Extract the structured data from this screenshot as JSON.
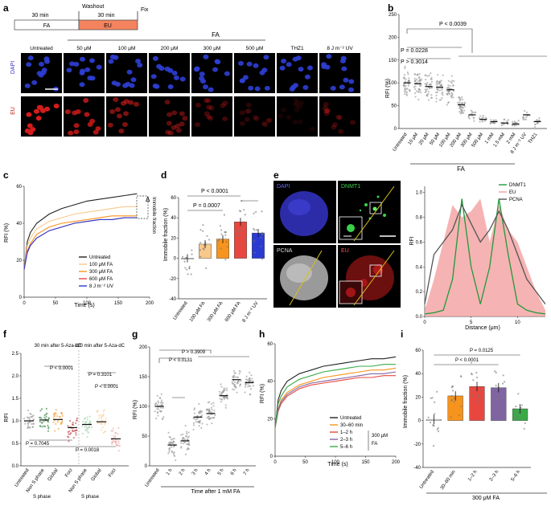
{
  "panel_labels": [
    "a",
    "b",
    "c",
    "d",
    "e",
    "f",
    "g",
    "h",
    "i"
  ],
  "colors": {
    "black": "#222222",
    "orange": "#f7941d",
    "orange_light": "#f9c98b",
    "red": "#e8473f",
    "red_dark": "#c0262c",
    "purple": "#8064a2",
    "green": "#3aaa47",
    "green_dark": "#1f9a3a",
    "blue": "#2b3bd1",
    "gray": "#8a8a8a",
    "pink": "#f4a0a0",
    "dapi": "#3535c8",
    "eu": "#c11a1a"
  },
  "a": {
    "fa_label": "FA",
    "eu_label": "EU",
    "time_fa": "30 min",
    "time_eu": "30 min",
    "washout": "Washout",
    "fix": "Fix",
    "fa_header": "FA",
    "columns": [
      "Untreated",
      "50 μM",
      "100 μM",
      "200 μM",
      "300 μM",
      "500 μM",
      "THZ1",
      "8 J m⁻² UV"
    ],
    "row_dapi": "DAPI",
    "row_eu": "EU"
  },
  "b": {
    "ylabel": "RFI (%)",
    "xgroup": "FA",
    "p1": "P > 0.3014",
    "p2": "P = 0.0228",
    "p3": "P < 0.0039",
    "chart_data": {
      "type": "scatter",
      "categories": [
        "Untreated",
        "10 μM",
        "20 μM",
        "50 μM",
        "100 μM",
        "200 μM",
        "300 μM",
        "500 μM",
        "1 mM",
        "1.5 mM",
        "2 mM",
        "8 J m⁻² UV",
        "THZ1"
      ],
      "values": [
        100,
        98,
        92,
        90,
        85,
        52,
        30,
        20,
        15,
        12,
        10,
        30,
        15
      ],
      "ylabel": "RFI (%)",
      "ylim": [
        0,
        250
      ],
      "yticks": [
        0,
        50,
        100,
        150,
        200,
        250
      ]
    }
  },
  "c": {
    "ylabel": "RFI (%)",
    "xlabel": "Time (s)",
    "delta": "Δ",
    "imm_label": "Immobile fraction",
    "legend": [
      "Untreated",
      "100 μM FA",
      "300 μM FA",
      "600 μM FA",
      "8 J m⁻² UV"
    ],
    "chart_data": {
      "type": "line",
      "x": [
        0,
        5,
        10,
        20,
        40,
        60,
        80,
        100,
        120,
        140,
        160,
        180
      ],
      "series": [
        {
          "name": "Untreated",
          "values": [
            15,
            30,
            35,
            40,
            45,
            48,
            50,
            52,
            53,
            54,
            55,
            56
          ]
        },
        {
          "name": "100 μM FA",
          "values": [
            15,
            28,
            32,
            37,
            41,
            43,
            45,
            46,
            47,
            48,
            49,
            49
          ]
        },
        {
          "name": "300 μM FA",
          "values": [
            15,
            25,
            29,
            34,
            38,
            40,
            41,
            42,
            43,
            44,
            44,
            44
          ]
        },
        {
          "name": "600 μM FA",
          "values": [
            15,
            25,
            28,
            32,
            36,
            38,
            40,
            41,
            42,
            42,
            43,
            43
          ]
        },
        {
          "name": "8 J m⁻² UV",
          "values": [
            15,
            24,
            28,
            32,
            36,
            38,
            40,
            41,
            42,
            42,
            43,
            43
          ]
        }
      ],
      "xlabel": "Time (s)",
      "ylabel": "RFI (%)",
      "xlim": [
        0,
        200
      ],
      "ylim": [
        0,
        60
      ],
      "xticks": [
        0,
        50,
        100,
        150,
        200
      ],
      "yticks": [
        0,
        20,
        40,
        60
      ]
    }
  },
  "d": {
    "ylabel": "Immobile fraction (%)",
    "p1": "P < 0.0001",
    "p2": "P = 0.0007",
    "chart_data": {
      "type": "bar",
      "categories": [
        "Untreated",
        "100 μM FA",
        "300 μM FA",
        "600 μM FA",
        "8 J m⁻² UV"
      ],
      "values": [
        0,
        14,
        19,
        36,
        25
      ],
      "ylim": [
        -40,
        60
      ],
      "yticks": [
        -40,
        -20,
        0,
        20,
        40,
        60
      ]
    }
  },
  "e": {
    "labels": [
      "DAPI",
      "DNMT1",
      "PCNA",
      "EU"
    ],
    "legend": [
      "DNMT1",
      "EU",
      "PCNA"
    ],
    "ylabel": "RFI",
    "xlabel": "Distance (μm)",
    "chart_data": {
      "type": "line",
      "x": [
        0,
        1,
        2,
        3,
        4,
        5,
        6,
        7,
        8,
        9,
        10,
        11,
        12,
        13
      ],
      "series": [
        {
          "name": "DNMT1",
          "values": [
            0.02,
            0.03,
            0.05,
            0.3,
            0.95,
            0.4,
            0.1,
            0.4,
            0.95,
            0.5,
            0.1,
            0.05,
            0.03,
            0.02
          ]
        },
        {
          "name": "EU",
          "values": [
            0.05,
            0.3,
            0.6,
            0.9,
            0.8,
            0.85,
            0.95,
            0.6,
            0.9,
            0.7,
            0.6,
            0.4,
            0.2,
            0.05
          ]
        },
        {
          "name": "PCNA",
          "values": [
            0.1,
            0.5,
            0.6,
            0.7,
            0.9,
            0.75,
            0.6,
            0.7,
            0.85,
            0.7,
            0.5,
            0.3,
            0.2,
            0.1
          ]
        }
      ],
      "xlim": [
        0,
        13
      ],
      "ylim": [
        0,
        1.05
      ],
      "xticks": [
        0,
        5,
        10
      ],
      "yticks": [
        0,
        0.2,
        0.4,
        0.6,
        0.8,
        1.0
      ]
    }
  },
  "f": {
    "ylabel": "RFI",
    "hdr1": "30 min after 5-Aza-dC",
    "hdr2": "120 min after 5-Aza-dC",
    "p1": "P < 0.0001",
    "p2": "P = 0.7045",
    "p3": "P = 0.3101",
    "p4": "P < 0.0001",
    "p5": "P = 0.0018",
    "group_label": "S phase",
    "chart_data": {
      "type": "scatter",
      "categories": [
        "Untreated",
        "Non S phase",
        "Global",
        "Foci",
        "Non S phase",
        "Global",
        "Foci"
      ],
      "values": [
        1.0,
        1.02,
        1.03,
        0.85,
        0.92,
        0.98,
        0.6
      ],
      "ylim": [
        0,
        2.5
      ],
      "yticks": [
        0,
        0.5,
        1.0,
        1.5,
        2.0,
        2.5
      ]
    }
  },
  "g": {
    "ylabel": "RFI (%)",
    "xgroup": "Time after 1 mM FA",
    "p1": "P < 0.0131",
    "p2": "P > 0.3909",
    "chart_data": {
      "type": "scatter",
      "categories": [
        "Untreated",
        "1 h",
        "2 h",
        "3 h",
        "4 h",
        "5 h",
        "6 h",
        "7 h"
      ],
      "values": [
        100,
        35,
        42,
        82,
        88,
        118,
        145,
        140
      ],
      "ylim": [
        0,
        200
      ],
      "yticks": [
        0,
        50,
        100,
        150,
        200
      ]
    }
  },
  "h": {
    "ylabel": "RFI (%)",
    "xlabel": "Time (s)",
    "dose": "300 μM",
    "dose2": "FA",
    "legend": [
      "Untreated",
      "30–60 min",
      "1–2 h",
      "2–3 h",
      "5–6 h"
    ],
    "chart_data": {
      "type": "line",
      "x": [
        0,
        5,
        10,
        20,
        40,
        60,
        80,
        100,
        120,
        140,
        160,
        180,
        200
      ],
      "series": [
        {
          "name": "Untreated",
          "values": [
            15,
            30,
            35,
            40,
            44,
            46,
            48,
            49,
            50,
            51,
            52,
            52,
            53
          ]
        },
        {
          "name": "30–60 min",
          "values": [
            15,
            25,
            30,
            34,
            38,
            40,
            42,
            43,
            44,
            45,
            46,
            46,
            47
          ]
        },
        {
          "name": "1–2 h",
          "values": [
            15,
            24,
            28,
            32,
            36,
            38,
            39,
            40,
            41,
            42,
            42,
            43,
            43
          ]
        },
        {
          "name": "2–3 h",
          "values": [
            15,
            25,
            29,
            33,
            37,
            39,
            40,
            41,
            42,
            43,
            44,
            44,
            45
          ]
        },
        {
          "name": "5–6 h",
          "values": [
            15,
            28,
            32,
            37,
            41,
            43,
            45,
            46,
            47,
            48,
            48,
            49,
            49
          ]
        }
      ],
      "xlim": [
        0,
        200
      ],
      "ylim": [
        0,
        60
      ],
      "xticks": [
        0,
        50,
        100,
        150,
        200
      ],
      "yticks": [
        0,
        20,
        40,
        60
      ]
    }
  },
  "i": {
    "ylabel": "Immobile fraction (%)",
    "xgroup": "300 μM FA",
    "p1": "P = 0.0125",
    "p2": "P < 0.0001",
    "chart_data": {
      "type": "bar",
      "categories": [
        "Untreated",
        "30–60 min",
        "1–2 h",
        "2–3 h",
        "5–6 h"
      ],
      "values": [
        1,
        21,
        29,
        28,
        10
      ],
      "ylim": [
        -40,
        60
      ],
      "yticks": [
        -40,
        -20,
        0,
        20,
        40,
        60
      ]
    }
  }
}
